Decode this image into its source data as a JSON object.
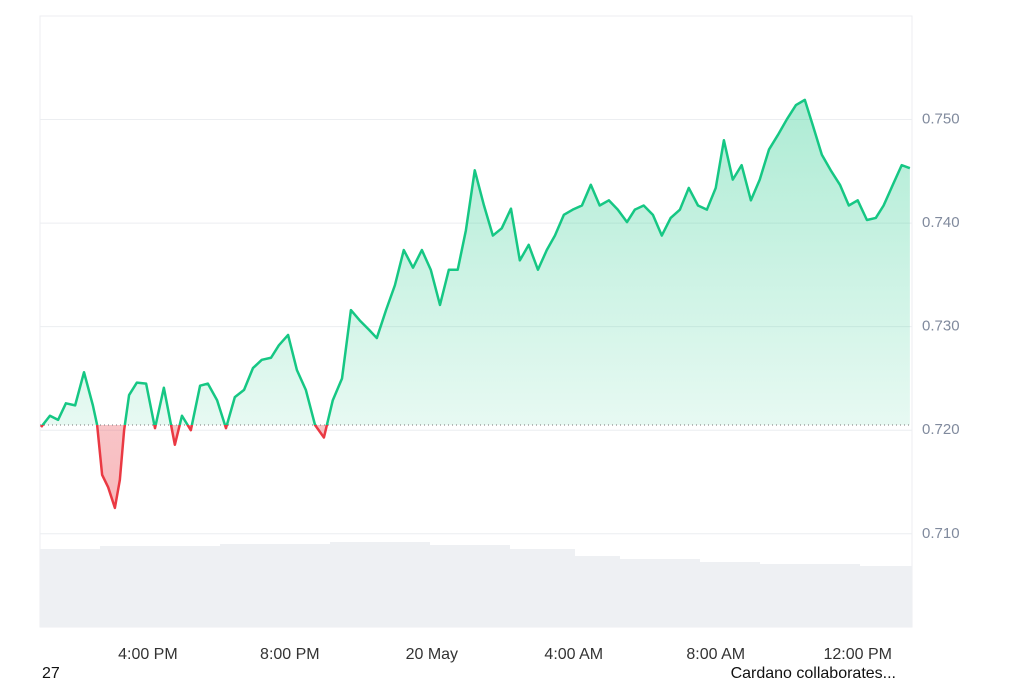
{
  "chart_data": {
    "type": "line",
    "color": "#16c784",
    "below_color": "#ea3943",
    "baseline": 0.7205,
    "x": [
      12.99,
      13.24,
      13.47,
      13.69,
      13.95,
      14.2,
      14.45,
      14.57,
      14.71,
      14.88,
      15.07,
      15.21,
      15.33,
      15.47,
      15.69,
      15.95,
      16.2,
      16.45,
      16.76,
      16.96,
      17.21,
      17.47,
      17.69,
      17.95,
      18.2,
      18.45,
      18.71,
      18.96,
      19.21,
      19.47,
      19.69,
      19.95,
      20.2,
      20.45,
      20.71,
      20.96,
      21.21,
      21.47,
      21.72,
      21.97,
      22.23,
      22.45,
      22.71,
      22.96,
      23.21,
      23.47,
      23.72,
      23.97,
      24.23,
      24.48,
      24.73,
      24.96,
      25.21,
      25.47,
      25.72,
      25.97,
      26.23,
      26.48,
      26.73,
      26.99,
      27.24,
      27.47,
      27.72,
      27.97,
      28.23,
      28.48,
      28.73,
      28.99,
      29.24,
      29.5,
      29.72,
      29.97,
      30.23,
      30.48,
      30.73,
      30.99,
      31.24,
      31.5,
      31.75,
      32.0,
      32.23,
      32.48,
      32.73,
      32.99,
      33.24,
      33.5,
      33.75,
      34.0,
      34.26,
      34.51,
      34.73,
      34.99,
      35.24,
      35.5,
      35.75,
      36.0,
      36.26,
      36.51,
      36.73,
      36.99,
      37.24,
      37.47
    ],
    "values": [
      0.7203,
      0.7214,
      0.721,
      0.7226,
      0.7224,
      0.7256,
      0.7224,
      0.7205,
      0.7157,
      0.7145,
      0.7125,
      0.7152,
      0.72,
      0.7234,
      0.7246,
      0.7245,
      0.7202,
      0.7241,
      0.7186,
      0.7214,
      0.72,
      0.7243,
      0.7245,
      0.7229,
      0.7202,
      0.7232,
      0.7239,
      0.726,
      0.7268,
      0.727,
      0.7282,
      0.7292,
      0.7258,
      0.7239,
      0.7205,
      0.7193,
      0.7229,
      0.725,
      0.7316,
      0.7306,
      0.7297,
      0.7289,
      0.7316,
      0.734,
      0.7374,
      0.7357,
      0.7374,
      0.7355,
      0.7321,
      0.7355,
      0.7355,
      0.7393,
      0.7451,
      0.7417,
      0.7388,
      0.7395,
      0.7414,
      0.7364,
      0.7379,
      0.7355,
      0.7374,
      0.7388,
      0.7408,
      0.7413,
      0.7417,
      0.7437,
      0.7417,
      0.7422,
      0.7413,
      0.7401,
      0.7413,
      0.7417,
      0.7408,
      0.7388,
      0.7405,
      0.7413,
      0.7434,
      0.7417,
      0.7413,
      0.7434,
      0.748,
      0.7442,
      0.7456,
      0.7422,
      0.7442,
      0.7471,
      0.7485,
      0.75,
      0.7514,
      0.7519,
      0.7495,
      0.7466,
      0.7451,
      0.7437,
      0.7417,
      0.7422,
      0.7403,
      0.7405,
      0.7417,
      0.7437,
      0.7456,
      0.7453
    ],
    "xlim": [
      12.96,
      37.53
    ],
    "xticks": [
      {
        "value": 16,
        "label": "4:00 PM"
      },
      {
        "value": 20,
        "label": "8:00 PM"
      },
      {
        "value": 24,
        "label": "20 May"
      },
      {
        "value": 28,
        "label": "4:00 AM"
      },
      {
        "value": 32,
        "label": "8:00 AM"
      },
      {
        "value": 36,
        "label": "12:00 PM"
      }
    ],
    "ylim": [
      0.701,
      0.76
    ],
    "yticks": [
      {
        "value": 0.71,
        "label": "0.710"
      },
      {
        "value": 0.72,
        "label": "0.720"
      },
      {
        "value": 0.73,
        "label": "0.730"
      },
      {
        "value": 0.74,
        "label": "0.740"
      },
      {
        "value": 0.75,
        "label": "0.750"
      }
    ],
    "grid": true,
    "annotations": [
      "27",
      "Cardano collaborates..."
    ]
  }
}
